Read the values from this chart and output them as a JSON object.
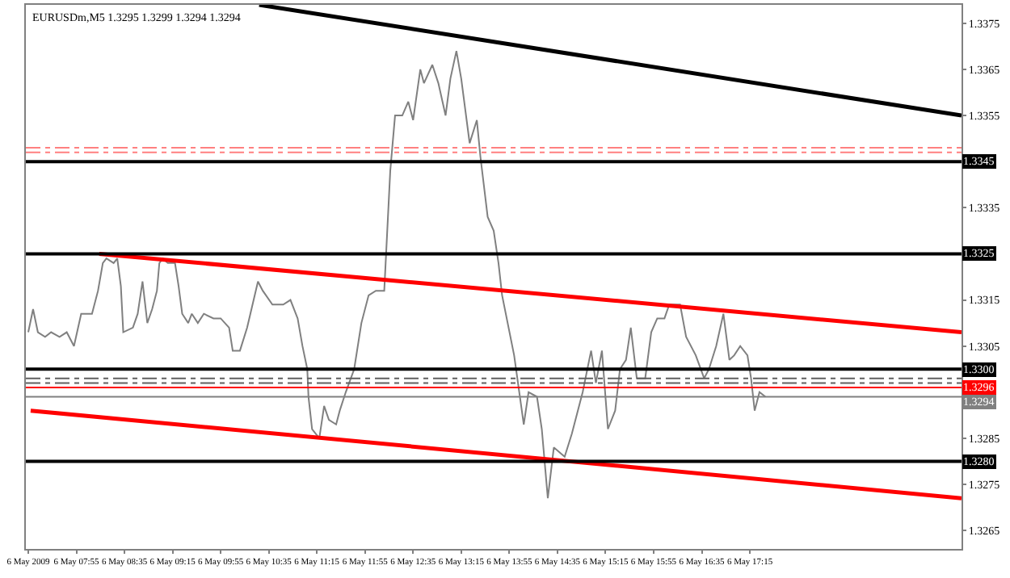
{
  "chart_data": {
    "type": "line",
    "title": "EURUSDm,M5 1.3295 1.3299 1.3294 1.3294",
    "series": [
      {
        "color": "#808080",
        "x": [
          "2009-05-06T07:15",
          "2009-05-06T07:19",
          "2009-05-06T07:23",
          "2009-05-06T07:29",
          "2009-05-06T07:34",
          "2009-05-06T07:41",
          "2009-05-06T07:47",
          "2009-05-06T07:53",
          "2009-05-06T07:59",
          "2009-05-06T08:08",
          "2009-05-06T08:13",
          "2009-05-06T08:17",
          "2009-05-06T08:20",
          "2009-05-06T08:26",
          "2009-05-06T08:29",
          "2009-05-06T08:32",
          "2009-05-06T08:34",
          "2009-05-06T08:42",
          "2009-05-06T08:46",
          "2009-05-06T08:50",
          "2009-05-06T08:54",
          "2009-05-06T08:58",
          "2009-05-06T09:02",
          "2009-05-06T09:04",
          "2009-05-06T09:07",
          "2009-05-06T09:11",
          "2009-05-06T09:17",
          "2009-05-06T09:20",
          "2009-05-06T09:23",
          "2009-05-06T09:28",
          "2009-05-06T09:31",
          "2009-05-06T09:36",
          "2009-05-06T09:41",
          "2009-05-06T09:49",
          "2009-05-06T09:55",
          "2009-05-06T10:02",
          "2009-05-06T10:05",
          "2009-05-06T10:11",
          "2009-05-06T10:17",
          "2009-05-06T10:26",
          "2009-05-06T10:30",
          "2009-05-06T10:38",
          "2009-05-06T10:47",
          "2009-05-06T10:53",
          "2009-05-06T10:59",
          "2009-05-06T11:03",
          "2009-05-06T11:07",
          "2009-05-06T11:08",
          "2009-05-06T11:11",
          "2009-05-06T11:17",
          "2009-05-06T11:21",
          "2009-05-06T11:25",
          "2009-05-06T11:31",
          "2009-05-06T11:34",
          "2009-05-06T11:39",
          "2009-05-06T11:46",
          "2009-05-06T11:52",
          "2009-05-06T11:58",
          "2009-05-06T12:04",
          "2009-05-06T12:11",
          "2009-05-06T12:16",
          "2009-05-06T12:20",
          "2009-05-06T12:26",
          "2009-05-06T12:31",
          "2009-05-06T12:35",
          "2009-05-06T12:41",
          "2009-05-06T12:44",
          "2009-05-06T12:51",
          "2009-05-06T12:56",
          "2009-05-06T13:02",
          "2009-05-06T13:06",
          "2009-05-06T13:11",
          "2009-05-06T13:15",
          "2009-05-06T13:22",
          "2009-05-06T13:28",
          "2009-05-06T13:31",
          "2009-05-06T13:37",
          "2009-05-06T13:42",
          "2009-05-06T13:46",
          "2009-05-06T13:49",
          "2009-05-06T13:59",
          "2009-05-06T14:07",
          "2009-05-06T14:11",
          "2009-05-06T14:18",
          "2009-05-06T14:22",
          "2009-05-06T14:27",
          "2009-05-06T14:32",
          "2009-05-06T14:41",
          "2009-05-06T14:47",
          "2009-05-06T14:56",
          "2009-05-06T15:03",
          "2009-05-06T15:07",
          "2009-05-06T15:12",
          "2009-05-06T15:17",
          "2009-05-06T15:23",
          "2009-05-06T15:27",
          "2009-05-06T15:32",
          "2009-05-06T15:36",
          "2009-05-06T15:41",
          "2009-05-06T15:48",
          "2009-05-06T15:53",
          "2009-05-06T15:58",
          "2009-05-06T16:04",
          "2009-05-06T16:08",
          "2009-05-06T16:17",
          "2009-05-06T16:22",
          "2009-05-06T16:30",
          "2009-05-06T16:37",
          "2009-05-06T16:41",
          "2009-05-06T16:47",
          "2009-05-06T16:53",
          "2009-05-06T16:58",
          "2009-05-06T17:02",
          "2009-05-06T17:07",
          "2009-05-06T17:13",
          "2009-05-06T17:16",
          "2009-05-06T17:19",
          "2009-05-06T17:23",
          "2009-05-06T17:28"
        ],
        "values": [
          1.3308,
          1.3313,
          1.3308,
          1.3307,
          1.3308,
          1.3307,
          1.3308,
          1.3305,
          1.3312,
          1.3312,
          1.3317,
          1.3323,
          1.3324,
          1.3323,
          1.3324,
          1.3318,
          1.3308,
          1.3309,
          1.3312,
          1.3319,
          1.331,
          1.3313,
          1.3317,
          1.3323,
          1.3324,
          1.3323,
          1.3323,
          1.3318,
          1.3312,
          1.331,
          1.3312,
          1.331,
          1.3312,
          1.3311,
          1.3311,
          1.3309,
          1.3304,
          1.3304,
          1.3309,
          1.3319,
          1.3317,
          1.3314,
          1.3314,
          1.3315,
          1.3311,
          1.3305,
          1.33,
          1.3294,
          1.3287,
          1.3285,
          1.3292,
          1.3289,
          1.3288,
          1.3291,
          1.3295,
          1.33,
          1.331,
          1.3316,
          1.3317,
          1.3317,
          1.3343,
          1.3355,
          1.3355,
          1.3358,
          1.3354,
          1.3365,
          1.3362,
          1.3366,
          1.3362,
          1.3355,
          1.3363,
          1.3369,
          1.3363,
          1.3349,
          1.3354,
          1.3346,
          1.3333,
          1.333,
          1.3323,
          1.3316,
          1.3303,
          1.3288,
          1.3295,
          1.3294,
          1.3287,
          1.3272,
          1.3283,
          1.3281,
          1.3286,
          1.3295,
          1.3304,
          1.3297,
          1.3304,
          1.3287,
          1.3291,
          1.33,
          1.3302,
          1.3309,
          1.3298,
          1.3298,
          1.3308,
          1.3311,
          1.3311,
          1.3314,
          1.3314,
          1.3307,
          1.3303,
          1.3298,
          1.33,
          1.3305,
          1.3312,
          1.3302,
          1.3303,
          1.3305,
          1.3303,
          1.3298,
          1.3291,
          1.3295,
          1.3294
        ]
      },
      {
        "color": "#000000",
        "x": [
          "2009-05-06T10:27",
          "2009-05-06T20:11"
        ],
        "values": [
          1.3379,
          1.3355
        ]
      },
      {
        "color": "#ff0000",
        "x": [
          "2009-05-06T08:14",
          "2009-05-06T20:11"
        ],
        "values": [
          1.3325,
          1.3308
        ]
      },
      {
        "color": "#ff0000",
        "x": [
          "2009-05-06T07:17",
          "2009-05-06T20:11"
        ],
        "values": [
          1.3291,
          1.3272
        ]
      }
    ],
    "xlim": [
      "2009-05-06T07:13",
      "2009-05-06T20:11"
    ],
    "xticks": [
      {
        "value": "2009-05-06T07:15",
        "label": "6 May 2009"
      },
      {
        "value": "2009-05-06T07:55",
        "label": "6 May 07:55"
      },
      {
        "value": "2009-05-06T08:35",
        "label": "6 May 08:35"
      },
      {
        "value": "2009-05-06T09:15",
        "label": "6 May 09:15"
      },
      {
        "value": "2009-05-06T09:55",
        "label": "6 May 09:55"
      },
      {
        "value": "2009-05-06T10:35",
        "label": "6 May 10:35"
      },
      {
        "value": "2009-05-06T11:15",
        "label": "6 May 11:15"
      },
      {
        "value": "2009-05-06T11:55",
        "label": "6 May 11:55"
      },
      {
        "value": "2009-05-06T12:35",
        "label": "6 May 12:35"
      },
      {
        "value": "2009-05-06T13:15",
        "label": "6 May 13:15"
      },
      {
        "value": "2009-05-06T13:55",
        "label": "6 May 13:55"
      },
      {
        "value": "2009-05-06T14:35",
        "label": "6 May 14:35"
      },
      {
        "value": "2009-05-06T15:15",
        "label": "6 May 15:15"
      },
      {
        "value": "2009-05-06T15:55",
        "label": "6 May 15:55"
      },
      {
        "value": "2009-05-06T16:35",
        "label": "6 May 16:35"
      },
      {
        "value": "2009-05-06T17:15",
        "label": "6 May 17:15"
      }
    ],
    "ylim": [
      1.3261,
      1.3379
    ],
    "yticks": [
      1.3375,
      1.3365,
      1.3355,
      1.3335,
      1.3315,
      1.3305,
      1.3285,
      1.3275,
      1.3265
    ],
    "ref_lines": [
      {
        "axis": "y",
        "value": 1.3348,
        "color": "#ff8080",
        "line_style": "dashed"
      },
      {
        "axis": "y",
        "value": 1.3347,
        "color": "#ff8080",
        "line_style": "dashed"
      },
      {
        "axis": "y",
        "value": 1.3345,
        "label": "1.3345",
        "color": "#000000"
      },
      {
        "axis": "y",
        "value": 1.3325,
        "label": "1.3325",
        "color": "#000000"
      },
      {
        "axis": "y",
        "value": 1.33,
        "label": "1.3300",
        "color": "#000000"
      },
      {
        "axis": "y",
        "value": 1.3298,
        "color": "#606060",
        "line_style": "dashed"
      },
      {
        "axis": "y",
        "value": 1.3297,
        "color": "#606060",
        "line_style": "dashed"
      },
      {
        "axis": "y",
        "value": 1.3296,
        "label": "1.3296",
        "color": "#ff0000"
      },
      {
        "axis": "y",
        "value": 1.3294,
        "label": "1.3294",
        "color": "#808080"
      },
      {
        "axis": "y",
        "value": 1.328,
        "label": "1.3280",
        "color": "#000000"
      }
    ]
  }
}
